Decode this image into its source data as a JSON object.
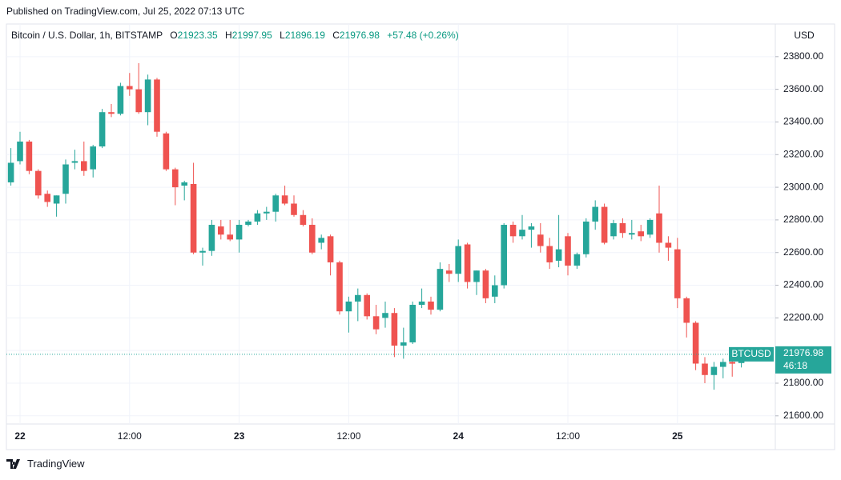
{
  "header": {
    "published": "Published on TradingView.com, Jul 25, 2022 07:13 UTC"
  },
  "footer": {
    "brand": "TradingView"
  },
  "chart_data": {
    "type": "candlestick",
    "title": "Bitcoin / U.S. Dollar, 1h, BITSTAMP",
    "ohlc_labels": [
      "O",
      "H",
      "L",
      "C"
    ],
    "change": "+57.48 (+0.26%)",
    "currency": "USD",
    "symbol": "BTCUSD",
    "countdown": "46:18",
    "up_color": "#26a69a",
    "down_color": "#ef5350",
    "grid": true,
    "categories": [
      null,
      "22",
      null,
      null,
      null,
      null,
      null,
      null,
      null,
      null,
      null,
      null,
      null,
      "12:00",
      null,
      null,
      null,
      null,
      null,
      null,
      null,
      null,
      null,
      null,
      null,
      "23",
      null,
      null,
      null,
      null,
      null,
      null,
      null,
      null,
      null,
      null,
      null,
      "12:00",
      null,
      null,
      null,
      null,
      null,
      null,
      null,
      null,
      null,
      null,
      null,
      "24",
      null,
      null,
      null,
      null,
      null,
      null,
      null,
      null,
      null,
      null,
      null,
      "12:00",
      null,
      null,
      null,
      null,
      null,
      null,
      null,
      null,
      null,
      null,
      null,
      "25",
      null,
      null,
      null,
      null,
      null,
      null,
      null
    ],
    "open": [
      23030,
      23160,
      23280,
      23100,
      22960,
      22900,
      22960,
      23150,
      23160,
      23110,
      23250,
      23460,
      23450,
      23620,
      23600,
      23460,
      23660,
      23330,
      23110,
      23010,
      23020,
      22600,
      22610,
      22760,
      22710,
      22680,
      22770,
      22790,
      22840,
      22850,
      22950,
      22900,
      22830,
      22770,
      22660,
      22700,
      22540,
      22240,
      22300,
      22340,
      22210,
      22200,
      22230,
      22030,
      22050,
      22280,
      22300,
      22250,
      22490,
      22470,
      22650,
      22420,
      22490,
      22330,
      22400,
      22770,
      22700,
      22740,
      22710,
      22640,
      22550,
      22700,
      22520,
      22590,
      22790,
      22880,
      22700,
      22780,
      22710,
      22730,
      22710,
      22840,
      22660,
      22620,
      22320,
      22170,
      21920,
      21850,
      21900,
      21930,
      21923.35
    ],
    "high": [
      23240,
      23340,
      23290,
      23110,
      22980,
      22950,
      23170,
      23230,
      23280,
      23260,
      23480,
      23510,
      23640,
      23700,
      23760,
      23690,
      23670,
      23340,
      23120,
      23040,
      23150,
      22630,
      22800,
      22800,
      22800,
      22800,
      22800,
      22860,
      22880,
      22960,
      23010,
      22950,
      22860,
      22810,
      22710,
      22710,
      22550,
      22330,
      22380,
      22350,
      22280,
      22300,
      22260,
      22140,
      22300,
      22380,
      22330,
      22540,
      22530,
      22680,
      22660,
      22490,
      22500,
      22460,
      22780,
      22790,
      22830,
      22780,
      22780,
      22690,
      22830,
      22720,
      22600,
      22810,
      22920,
      22900,
      22800,
      22810,
      22800,
      22770,
      22810,
      23010,
      22700,
      22690,
      22330,
      22180,
      21960,
      21930,
      21950,
      21980,
      21997.95
    ],
    "low": [
      23010,
      23140,
      23080,
      22930,
      22880,
      22820,
      22900,
      23110,
      23070,
      23060,
      23240,
      23430,
      23440,
      23560,
      23450,
      23380,
      23310,
      23100,
      22890,
      22920,
      22590,
      22520,
      22580,
      22680,
      22670,
      22600,
      22760,
      22770,
      22800,
      22790,
      22890,
      22820,
      22760,
      22590,
      22620,
      22460,
      22220,
      22110,
      22180,
      22190,
      22100,
      22140,
      21960,
      21950,
      22040,
      22260,
      22220,
      22240,
      22420,
      22420,
      22380,
      22340,
      22290,
      22290,
      22380,
      22660,
      22680,
      22630,
      22600,
      22500,
      22510,
      22460,
      22500,
      22570,
      22740,
      22650,
      22680,
      22690,
      22680,
      22670,
      22690,
      22600,
      22550,
      22260,
      22080,
      21880,
      21800,
      21760,
      21830,
      21840,
      21896.19
    ],
    "close": [
      23150,
      23280,
      23100,
      22950,
      22910,
      22950,
      23140,
      23160,
      23100,
      23250,
      23460,
      23450,
      23620,
      23600,
      23460,
      23660,
      23340,
      23110,
      23000,
      23030,
      22600,
      22610,
      22770,
      22710,
      22680,
      22770,
      22790,
      22840,
      22850,
      22950,
      22900,
      22830,
      22770,
      22600,
      22690,
      22540,
      22240,
      22300,
      22340,
      22210,
      22130,
      22230,
      22030,
      22050,
      22280,
      22300,
      22250,
      22500,
      22470,
      22640,
      22420,
      22490,
      22320,
      22400,
      22770,
      22700,
      22740,
      22760,
      22640,
      22540,
      22620,
      22520,
      22590,
      22790,
      22880,
      22660,
      22780,
      22720,
      22720,
      22700,
      22800,
      22660,
      22630,
      22320,
      22170,
      21920,
      21850,
      21900,
      21930,
      21919.5,
      21976.98
    ],
    "ylim": [
      21550,
      24000
    ],
    "yticks": [
      {
        "value": 21600,
        "label": "21600.00"
      },
      {
        "value": 21800,
        "label": "21800.00"
      },
      {
        "value": 22000,
        "label": "22000.00"
      },
      {
        "value": 22200,
        "label": "22200.00"
      },
      {
        "value": 22400,
        "label": "22400.00"
      },
      {
        "value": 22600,
        "label": "22600.00"
      },
      {
        "value": 22800,
        "label": "22800.00"
      },
      {
        "value": 23000,
        "label": "23000.00"
      },
      {
        "value": 23200,
        "label": "23200.00"
      },
      {
        "value": 23400,
        "label": "23400.00"
      },
      {
        "value": 23600,
        "label": "23600.00"
      },
      {
        "value": 23800,
        "label": "23800.00"
      }
    ]
  }
}
